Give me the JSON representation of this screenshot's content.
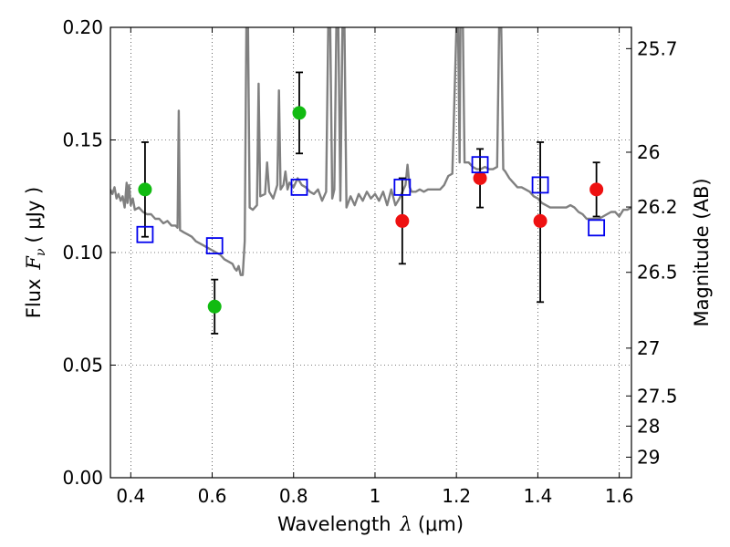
{
  "chart_data": {
    "type": "scatter",
    "xlabel_text": "Wavelength",
    "xlabel_symbol": "λ",
    "xlabel_unit": "(μm)",
    "ylabel_text": "Flux",
    "ylabel_symbol": "F",
    "ylabel_subscript": "ν",
    "ylabel_unit": "( μJy )",
    "y2label": "Magnitude (AB)",
    "xlim": [
      0.35,
      1.63
    ],
    "ylim": [
      0.0,
      0.2
    ],
    "grid": true,
    "x_ticks": [
      {
        "value": 0.4,
        "label": "0.4"
      },
      {
        "value": 0.6,
        "label": "0.6"
      },
      {
        "value": 0.8,
        "label": "0.8"
      },
      {
        "value": 1.0,
        "label": "1"
      },
      {
        "value": 1.2,
        "label": "1.2"
      },
      {
        "value": 1.4,
        "label": "1.4"
      },
      {
        "value": 1.6,
        "label": "1.6"
      }
    ],
    "y_ticks": [
      {
        "value": 0.0,
        "label": "0.00"
      },
      {
        "value": 0.05,
        "label": "0.05"
      },
      {
        "value": 0.1,
        "label": "0.10"
      },
      {
        "value": 0.15,
        "label": "0.15"
      },
      {
        "value": 0.2,
        "label": "0.20"
      }
    ],
    "y2_ticks": [
      {
        "value": 25.7,
        "label": "25.7"
      },
      {
        "value": 26.0,
        "label": "26"
      },
      {
        "value": 26.2,
        "label": "26.2"
      },
      {
        "value": 26.5,
        "label": "26.5"
      },
      {
        "value": 27.0,
        "label": "27"
      },
      {
        "value": 27.5,
        "label": "27.5"
      },
      {
        "value": 28.0,
        "label": "28"
      },
      {
        "value": 29.0,
        "label": "29"
      }
    ],
    "series": [
      {
        "kind": "spectrum",
        "color": "#808080",
        "points": [
          [
            0.35,
            0.128
          ],
          [
            0.355,
            0.126
          ],
          [
            0.36,
            0.129
          ],
          [
            0.365,
            0.124
          ],
          [
            0.37,
            0.126
          ],
          [
            0.375,
            0.123
          ],
          [
            0.38,
            0.125
          ],
          [
            0.385,
            0.12
          ],
          [
            0.39,
            0.131
          ],
          [
            0.392,
            0.122
          ],
          [
            0.396,
            0.13
          ],
          [
            0.4,
            0.121
          ],
          [
            0.405,
            0.124
          ],
          [
            0.41,
            0.119
          ],
          [
            0.42,
            0.12
          ],
          [
            0.43,
            0.118
          ],
          [
            0.44,
            0.117
          ],
          [
            0.45,
            0.117
          ],
          [
            0.46,
            0.115
          ],
          [
            0.47,
            0.115
          ],
          [
            0.48,
            0.113
          ],
          [
            0.49,
            0.114
          ],
          [
            0.5,
            0.112
          ],
          [
            0.51,
            0.112
          ],
          [
            0.515,
            0.111
          ],
          [
            0.518,
            0.163
          ],
          [
            0.521,
            0.11
          ],
          [
            0.53,
            0.109
          ],
          [
            0.54,
            0.108
          ],
          [
            0.55,
            0.107
          ],
          [
            0.56,
            0.105
          ],
          [
            0.57,
            0.104
          ],
          [
            0.58,
            0.103
          ],
          [
            0.59,
            0.102
          ],
          [
            0.6,
            0.101
          ],
          [
            0.61,
            0.1
          ],
          [
            0.62,
            0.099
          ],
          [
            0.63,
            0.097
          ],
          [
            0.64,
            0.096
          ],
          [
            0.65,
            0.095
          ],
          [
            0.655,
            0.093
          ],
          [
            0.66,
            0.092
          ],
          [
            0.665,
            0.094
          ],
          [
            0.67,
            0.09
          ],
          [
            0.675,
            0.09
          ],
          [
            0.68,
            0.105
          ],
          [
            0.684,
            0.2
          ],
          [
            0.688,
            0.2
          ],
          [
            0.692,
            0.12
          ],
          [
            0.7,
            0.119
          ],
          [
            0.71,
            0.121
          ],
          [
            0.714,
            0.175
          ],
          [
            0.718,
            0.125
          ],
          [
            0.73,
            0.126
          ],
          [
            0.735,
            0.14
          ],
          [
            0.74,
            0.127
          ],
          [
            0.75,
            0.124
          ],
          [
            0.76,
            0.13
          ],
          [
            0.764,
            0.172
          ],
          [
            0.768,
            0.128
          ],
          [
            0.775,
            0.13
          ],
          [
            0.78,
            0.136
          ],
          [
            0.785,
            0.128
          ],
          [
            0.79,
            0.131
          ],
          [
            0.8,
            0.129
          ],
          [
            0.81,
            0.133
          ],
          [
            0.82,
            0.13
          ],
          [
            0.83,
            0.129
          ],
          [
            0.84,
            0.127
          ],
          [
            0.85,
            0.126
          ],
          [
            0.86,
            0.128
          ],
          [
            0.87,
            0.123
          ],
          [
            0.88,
            0.127
          ],
          [
            0.885,
            0.2
          ],
          [
            0.89,
            0.2
          ],
          [
            0.895,
            0.124
          ],
          [
            0.9,
            0.128
          ],
          [
            0.905,
            0.2
          ],
          [
            0.91,
            0.2
          ],
          [
            0.915,
            0.123
          ],
          [
            0.92,
            0.2
          ],
          [
            0.925,
            0.2
          ],
          [
            0.93,
            0.12
          ],
          [
            0.94,
            0.125
          ],
          [
            0.95,
            0.121
          ],
          [
            0.96,
            0.126
          ],
          [
            0.97,
            0.123
          ],
          [
            0.98,
            0.127
          ],
          [
            0.99,
            0.124
          ],
          [
            1.0,
            0.126
          ],
          [
            1.01,
            0.123
          ],
          [
            1.02,
            0.127
          ],
          [
            1.03,
            0.121
          ],
          [
            1.04,
            0.128
          ],
          [
            1.05,
            0.121
          ],
          [
            1.06,
            0.124
          ],
          [
            1.075,
            0.13
          ],
          [
            1.08,
            0.139
          ],
          [
            1.085,
            0.129
          ],
          [
            1.09,
            0.127
          ],
          [
            1.1,
            0.127
          ],
          [
            1.11,
            0.128
          ],
          [
            1.12,
            0.127
          ],
          [
            1.13,
            0.128
          ],
          [
            1.14,
            0.128
          ],
          [
            1.15,
            0.128
          ],
          [
            1.16,
            0.128
          ],
          [
            1.17,
            0.13
          ],
          [
            1.18,
            0.134
          ],
          [
            1.19,
            0.135
          ],
          [
            1.2,
            0.2
          ],
          [
            1.204,
            0.2
          ],
          [
            1.208,
            0.14
          ],
          [
            1.21,
            0.2
          ],
          [
            1.216,
            0.2
          ],
          [
            1.22,
            0.14
          ],
          [
            1.23,
            0.14
          ],
          [
            1.24,
            0.138
          ],
          [
            1.25,
            0.137
          ],
          [
            1.26,
            0.137
          ],
          [
            1.27,
            0.138
          ],
          [
            1.28,
            0.137
          ],
          [
            1.29,
            0.137
          ],
          [
            1.3,
            0.138
          ],
          [
            1.305,
            0.2
          ],
          [
            1.31,
            0.2
          ],
          [
            1.315,
            0.137
          ],
          [
            1.32,
            0.136
          ],
          [
            1.33,
            0.133
          ],
          [
            1.34,
            0.131
          ],
          [
            1.35,
            0.129
          ],
          [
            1.36,
            0.129
          ],
          [
            1.37,
            0.128
          ],
          [
            1.38,
            0.127
          ],
          [
            1.39,
            0.125
          ],
          [
            1.4,
            0.124
          ],
          [
            1.41,
            0.122
          ],
          [
            1.42,
            0.121
          ],
          [
            1.43,
            0.12
          ],
          [
            1.44,
            0.12
          ],
          [
            1.45,
            0.12
          ],
          [
            1.46,
            0.12
          ],
          [
            1.47,
            0.12
          ],
          [
            1.48,
            0.121
          ],
          [
            1.49,
            0.12
          ],
          [
            1.5,
            0.118
          ],
          [
            1.51,
            0.117
          ],
          [
            1.52,
            0.115
          ],
          [
            1.53,
            0.115
          ],
          [
            1.54,
            0.115
          ],
          [
            1.55,
            0.115
          ],
          [
            1.56,
            0.116
          ],
          [
            1.57,
            0.117
          ],
          [
            1.58,
            0.118
          ],
          [
            1.59,
            0.118
          ],
          [
            1.6,
            0.116
          ],
          [
            1.61,
            0.119
          ],
          [
            1.62,
            0.119
          ],
          [
            1.63,
            0.12
          ]
        ]
      },
      {
        "kind": "observed",
        "color": "#11bb11",
        "points": [
          {
            "x": 0.435,
            "y": 0.128,
            "ylo": 0.107,
            "yhi": 0.149
          },
          {
            "x": 0.606,
            "y": 0.076,
            "ylo": 0.064,
            "yhi": 0.088
          },
          {
            "x": 0.814,
            "y": 0.162,
            "ylo": 0.144,
            "yhi": 0.18
          }
        ]
      },
      {
        "kind": "observed",
        "color": "#ee1111",
        "points": [
          {
            "x": 1.067,
            "y": 0.114,
            "ylo": 0.095,
            "yhi": 0.133
          },
          {
            "x": 1.258,
            "y": 0.133,
            "ylo": 0.12,
            "yhi": 0.146
          },
          {
            "x": 1.406,
            "y": 0.114,
            "ylo": 0.078,
            "yhi": 0.149
          },
          {
            "x": 1.544,
            "y": 0.128,
            "ylo": 0.116,
            "yhi": 0.14
          }
        ]
      },
      {
        "kind": "model",
        "color": "#0000ee",
        "points": [
          {
            "x": 0.435,
            "y": 0.108
          },
          {
            "x": 0.606,
            "y": 0.103
          },
          {
            "x": 0.814,
            "y": 0.129
          },
          {
            "x": 1.067,
            "y": 0.129
          },
          {
            "x": 1.258,
            "y": 0.139
          },
          {
            "x": 1.406,
            "y": 0.13
          },
          {
            "x": 1.544,
            "y": 0.111
          }
        ]
      }
    ]
  }
}
